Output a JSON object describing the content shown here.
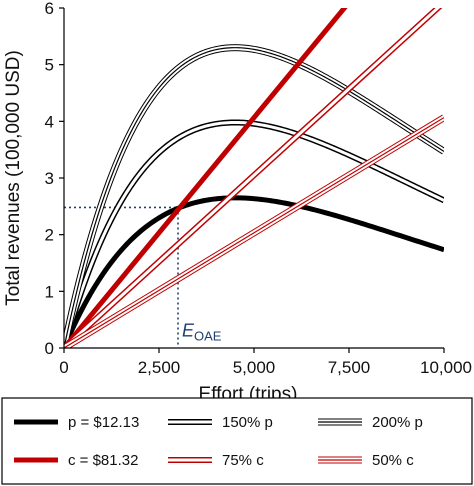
{
  "chart_data": {
    "type": "line",
    "xlabel": "Effort (trips)",
    "ylabel": "Total revenues (100,000 USD)",
    "xlim": [
      0,
      10000
    ],
    "ylim": [
      0,
      6
    ],
    "x_ticks": [
      0,
      2500,
      5000,
      7500,
      10000
    ],
    "x_tick_labels": [
      "0",
      "2,500",
      "5,000",
      "7,500",
      "10,000"
    ],
    "y_ticks": [
      0,
      1,
      2,
      3,
      4,
      5,
      6
    ],
    "y_tick_labels": [
      "0",
      "1",
      "2",
      "3",
      "4",
      "5",
      "6"
    ],
    "grid": false,
    "legend_position": "bottom",
    "colors": {
      "revenue": "#000000",
      "cost": "#c00000",
      "annotation": "#1f3f73"
    },
    "series": [
      {
        "name": "p = $12.13",
        "kind": "revenue",
        "style": "solid",
        "peak_x": 4500,
        "peak_y": 2.65,
        "y_at_10000": 1.7
      },
      {
        "name": "150% p",
        "kind": "revenue",
        "style": "double",
        "peak_x": 4500,
        "peak_y": 3.98,
        "y_at_10000": 2.55
      },
      {
        "name": "200% p",
        "kind": "revenue",
        "style": "triple",
        "peak_x": 4500,
        "peak_y": 5.3,
        "y_at_10000": 3.4
      },
      {
        "name": "c = $81.32",
        "kind": "cost",
        "style": "solid",
        "x": [
          0,
          10000
        ],
        "y": [
          0,
          8.132
        ]
      },
      {
        "name": "75% c",
        "kind": "cost",
        "style": "double",
        "x": [
          0,
          10000
        ],
        "y": [
          0,
          6.099
        ]
      },
      {
        "name": "50% c",
        "kind": "cost",
        "style": "triple",
        "x": [
          0,
          10000
        ],
        "y": [
          0,
          4.066
        ]
      }
    ],
    "annotations": [
      {
        "label_main": "E",
        "label_sub": "OAE",
        "x": 3000,
        "y": 2.48
      }
    ]
  }
}
